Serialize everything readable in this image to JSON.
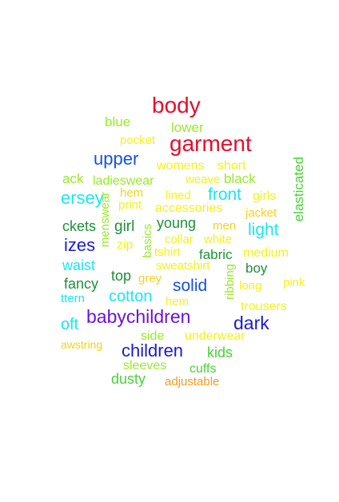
{
  "words": [
    {
      "text": "body",
      "color": "#e0102d"
    },
    {
      "text": "blue",
      "color": "#9be82a"
    },
    {
      "text": "lower",
      "color": "#9be82a"
    },
    {
      "text": "pocket",
      "color": "#f2f21e"
    },
    {
      "text": "garment",
      "color": "#e0102d"
    },
    {
      "text": "upper",
      "color": "#1450e6"
    },
    {
      "text": "womens",
      "color": "#f2f21e"
    },
    {
      "text": "short",
      "color": "#f2f21e"
    },
    {
      "text": "elasticated",
      "color": "#4ad03a"
    },
    {
      "text": "ack",
      "color": "#9be82a"
    },
    {
      "text": "ladieswear",
      "color": "#9be82a"
    },
    {
      "text": "weave",
      "color": "#f2f21e"
    },
    {
      "text": "black",
      "color": "#9be82a"
    },
    {
      "text": "ersey",
      "color": "#1ae6f0"
    },
    {
      "text": "hem",
      "color": "#f2d21e"
    },
    {
      "text": "lined",
      "color": "#f2f21e"
    },
    {
      "text": "front",
      "color": "#1ae6f0"
    },
    {
      "text": "girls",
      "color": "#f2f21e"
    },
    {
      "text": "print",
      "color": "#f2f21e"
    },
    {
      "text": "accessories",
      "color": "#f2f21e"
    },
    {
      "text": "jacket",
      "color": "#f2d21e"
    },
    {
      "text": "menswear",
      "color": "#9be82a"
    },
    {
      "text": "ckets",
      "color": "#1e8f3a"
    },
    {
      "text": "girl",
      "color": "#1e8f3a"
    },
    {
      "text": "young",
      "color": "#1e8f3a"
    },
    {
      "text": "men",
      "color": "#f2d21e"
    },
    {
      "text": "light",
      "color": "#1ae6f0"
    },
    {
      "text": "izes",
      "color": "#1a1ad8"
    },
    {
      "text": "zip",
      "color": "#f2f21e"
    },
    {
      "text": "basics",
      "color": "#9be82a"
    },
    {
      "text": "collar",
      "color": "#f2f21e"
    },
    {
      "text": "white",
      "color": "#f2f21e"
    },
    {
      "text": "tshirt",
      "color": "#f2f21e"
    },
    {
      "text": "fabric",
      "color": "#1e8f3a"
    },
    {
      "text": "medium",
      "color": "#f2f21e"
    },
    {
      "text": "waist",
      "color": "#1ae6f0"
    },
    {
      "text": "sweatshirt",
      "color": "#f2f21e"
    },
    {
      "text": "boy",
      "color": "#1e8f3a"
    },
    {
      "text": "top",
      "color": "#1e8f3a"
    },
    {
      "text": "grey",
      "color": "#f2d21e"
    },
    {
      "text": "ribbing",
      "color": "#9be82a"
    },
    {
      "text": "fancy",
      "color": "#1e8f3a"
    },
    {
      "text": "solid",
      "color": "#1450e6"
    },
    {
      "text": "long",
      "color": "#f2f21e"
    },
    {
      "text": "pink",
      "color": "#f2f21e"
    },
    {
      "text": "ttern",
      "color": "#1ae6f0"
    },
    {
      "text": "cotton",
      "color": "#1ae6f0"
    },
    {
      "text": "hem",
      "color": "#f2f21e"
    },
    {
      "text": "trousers",
      "color": "#f2f21e"
    },
    {
      "text": "babychildren",
      "color": "#6b14d8"
    },
    {
      "text": "dark",
      "color": "#1a1ad8"
    },
    {
      "text": "oft",
      "color": "#1ae6f0"
    },
    {
      "text": "side",
      "color": "#9be82a"
    },
    {
      "text": "underwear",
      "color": "#f2f21e"
    },
    {
      "text": "awstring",
      "color": "#f2d21e"
    },
    {
      "text": "children",
      "color": "#1a1ad8"
    },
    {
      "text": "kids",
      "color": "#4ad03a"
    },
    {
      "text": "sleeves",
      "color": "#9be82a"
    },
    {
      "text": "cuffs",
      "color": "#4ad03a"
    },
    {
      "text": "dusty",
      "color": "#4ad03a"
    },
    {
      "text": "adjustable",
      "color": "#f29b1e"
    }
  ]
}
